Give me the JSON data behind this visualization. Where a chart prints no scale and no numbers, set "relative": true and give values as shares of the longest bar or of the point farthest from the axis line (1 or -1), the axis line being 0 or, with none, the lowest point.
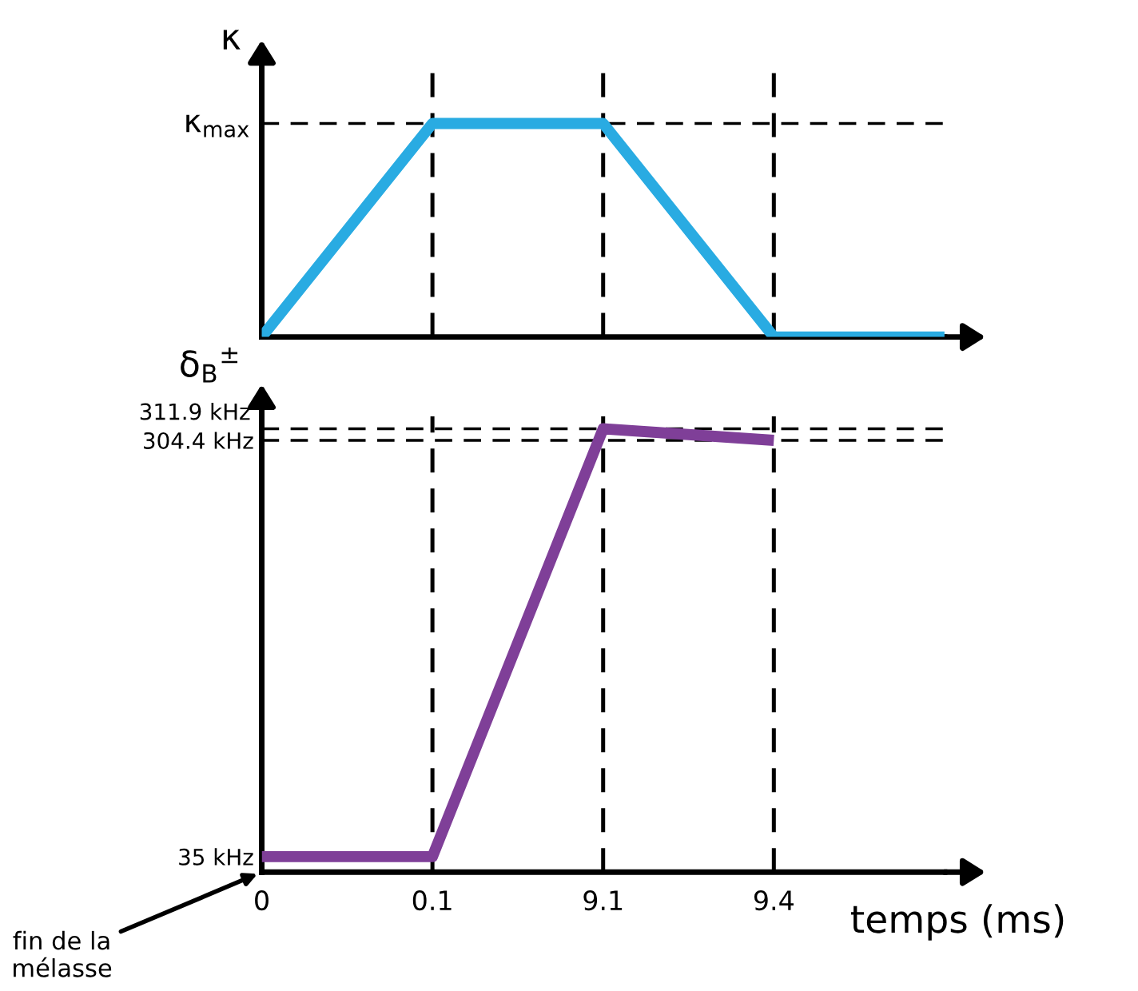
{
  "chart_data": [
    {
      "type": "line",
      "relative": true,
      "ylabel": "κ",
      "color": "#29abe2",
      "categories": [
        "0",
        "0.1",
        "9.1",
        "9.4",
        null
      ],
      "values": [
        0,
        1,
        1,
        0,
        0
      ],
      "tick_labels": false,
      "grid": false,
      "ref_lines": [
        {
          "axis": "y",
          "value": 1,
          "line_style": "dashed",
          "color": "#000000",
          "label": "κ$_{max}$"
        },
        {
          "axis": "x",
          "value": "0.1",
          "line_style": "dashed",
          "color": "#000000"
        },
        {
          "axis": "x",
          "value": "9.1",
          "line_style": "dashed",
          "color": "#000000"
        },
        {
          "axis": "x",
          "value": "9.4",
          "line_style": "dashed",
          "color": "#000000"
        }
      ]
    },
    {
      "type": "line",
      "ylabel": "δ$_{B}$$^{±}$",
      "xlabel": "temps (ms)",
      "color": "#7f3f98",
      "categories": [
        "0",
        "0.1",
        "9.1",
        "9.4",
        null
      ],
      "values": [
        35,
        35,
        311.9,
        304.4,
        null
      ],
      "ylim": [
        25,
        320
      ],
      "yticks": [
        {
          "value": 35,
          "label": "35 kHz"
        },
        {
          "value": 304.4,
          "label": "304.4 kHz"
        }
      ],
      "grid": false,
      "ref_lines": [
        {
          "axis": "y",
          "value": 311.9,
          "line_style": "dashed",
          "color": "#000000",
          "label": "311.9 kHz"
        },
        {
          "axis": "y",
          "value": 304.4,
          "line_style": "dashed",
          "color": "#000000"
        },
        {
          "axis": "x",
          "value": "0.1",
          "line_style": "dashed",
          "color": "#000000"
        },
        {
          "axis": "x",
          "value": "9.1",
          "line_style": "dashed",
          "color": "#000000"
        },
        {
          "axis": "x",
          "value": "9.4",
          "line_style": "dashed",
          "color": "#000000"
        }
      ],
      "annotations": [
        "fin de la\nmélasse"
      ]
    }
  ]
}
